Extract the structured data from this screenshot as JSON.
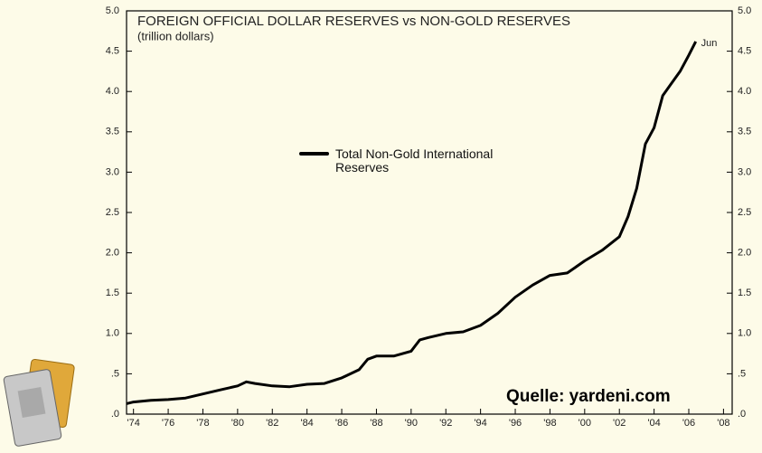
{
  "chart_data": {
    "type": "line",
    "title": "FOREIGN OFFICIAL DOLLAR RESERVES vs NON-GOLD RESERVES",
    "subtitle": "(trillion dollars)",
    "annotation": "Jun",
    "source": "Quelle: yardeni.com",
    "xlim": [
      1973.6,
      2008.5
    ],
    "ylim": [
      0,
      5
    ],
    "y2lim": [
      0,
      5
    ],
    "xticks": [
      {
        "value": 1974,
        "label": "'74"
      },
      {
        "value": 1976,
        "label": "'76"
      },
      {
        "value": 1978,
        "label": "'78"
      },
      {
        "value": 1980,
        "label": "'80"
      },
      {
        "value": 1982,
        "label": "'82"
      },
      {
        "value": 1984,
        "label": "'84"
      },
      {
        "value": 1986,
        "label": "'86"
      },
      {
        "value": 1988,
        "label": "'88"
      },
      {
        "value": 1990,
        "label": "'90"
      },
      {
        "value": 1992,
        "label": "'92"
      },
      {
        "value": 1994,
        "label": "'94"
      },
      {
        "value": 1996,
        "label": "'96"
      },
      {
        "value": 1998,
        "label": "'98"
      },
      {
        "value": 2000,
        "label": "'00"
      },
      {
        "value": 2002,
        "label": "'02"
      },
      {
        "value": 2004,
        "label": "'04"
      },
      {
        "value": 2006,
        "label": "'06"
      },
      {
        "value": 2008,
        "label": "'08"
      }
    ],
    "yticks": [
      {
        "value": 0,
        "label": ".0"
      },
      {
        "value": 0.5,
        "label": ".5"
      },
      {
        "value": 1,
        "label": "1.0"
      },
      {
        "value": 1.5,
        "label": "1.5"
      },
      {
        "value": 2,
        "label": "2.0"
      },
      {
        "value": 2.5,
        "label": "2.5"
      },
      {
        "value": 3,
        "label": "3.0"
      },
      {
        "value": 3.5,
        "label": "3.5"
      },
      {
        "value": 4,
        "label": "4.0"
      },
      {
        "value": 4.5,
        "label": "4.5"
      },
      {
        "value": 5,
        "label": "5.0"
      }
    ],
    "y2ticks": [
      {
        "value": 0,
        "label": ".0"
      },
      {
        "value": 0.5,
        "label": ".5"
      },
      {
        "value": 1,
        "label": "1.0"
      },
      {
        "value": 1.5,
        "label": "1.5"
      },
      {
        "value": 2,
        "label": "2.0"
      },
      {
        "value": 2.5,
        "label": "2.5"
      },
      {
        "value": 3,
        "label": "3.0"
      },
      {
        "value": 3.5,
        "label": "3.5"
      },
      {
        "value": 4,
        "label": "4.0"
      },
      {
        "value": 4.5,
        "label": "4.5"
      },
      {
        "value": 5,
        "label": "5.0"
      }
    ],
    "series": [
      {
        "name": "Total Non-Gold International Reserves",
        "color": "#000000",
        "x": [
          1973.6,
          1974,
          1975,
          1976,
          1977,
          1978,
          1979,
          1980,
          1980.5,
          1981,
          1982,
          1983,
          1984,
          1985,
          1986,
          1987,
          1987.5,
          1988,
          1989,
          1990,
          1990.5,
          1991,
          1992,
          1993,
          1994,
          1995,
          1996,
          1997,
          1998,
          1999,
          2000,
          2001,
          2002,
          2002.5,
          2003,
          2003.5,
          2004,
          2004.5,
          2005,
          2005.5,
          2006,
          2006.4
        ],
        "values": [
          0.13,
          0.15,
          0.17,
          0.18,
          0.2,
          0.25,
          0.3,
          0.35,
          0.4,
          0.38,
          0.35,
          0.34,
          0.37,
          0.38,
          0.45,
          0.55,
          0.68,
          0.72,
          0.72,
          0.78,
          0.92,
          0.95,
          1.0,
          1.02,
          1.1,
          1.25,
          1.45,
          1.6,
          1.72,
          1.75,
          1.9,
          2.03,
          2.2,
          2.45,
          2.8,
          3.35,
          3.55,
          3.95,
          4.1,
          4.25,
          4.45,
          4.62
        ]
      }
    ]
  }
}
